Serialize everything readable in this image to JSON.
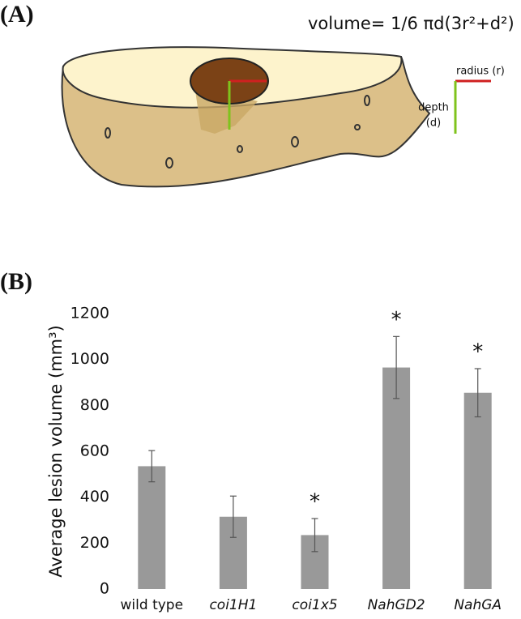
{
  "panel_a": {
    "label": "(A)",
    "formula": "volume= 1/6 πd(3r²+d²)",
    "radius_label": "radius (r)",
    "depth_label": [
      "depth",
      "(d)"
    ]
  },
  "chart_data": {
    "type": "bar",
    "panel_label": "(B)",
    "y_label": "Average lesion volume (mm³)",
    "categories": [
      "wild type",
      "coi1H1",
      "coi1x5",
      "NahGD2",
      "NahGA"
    ],
    "values": [
      535,
      315,
      235,
      965,
      855
    ],
    "errors": [
      68,
      90,
      72,
      135,
      105
    ],
    "significance": [
      null,
      null,
      "*",
      "*",
      "*"
    ],
    "color": "#999999",
    "ylim": [
      0,
      1200
    ],
    "yticks": [
      0,
      200,
      400,
      600,
      800,
      1000,
      1200
    ]
  }
}
